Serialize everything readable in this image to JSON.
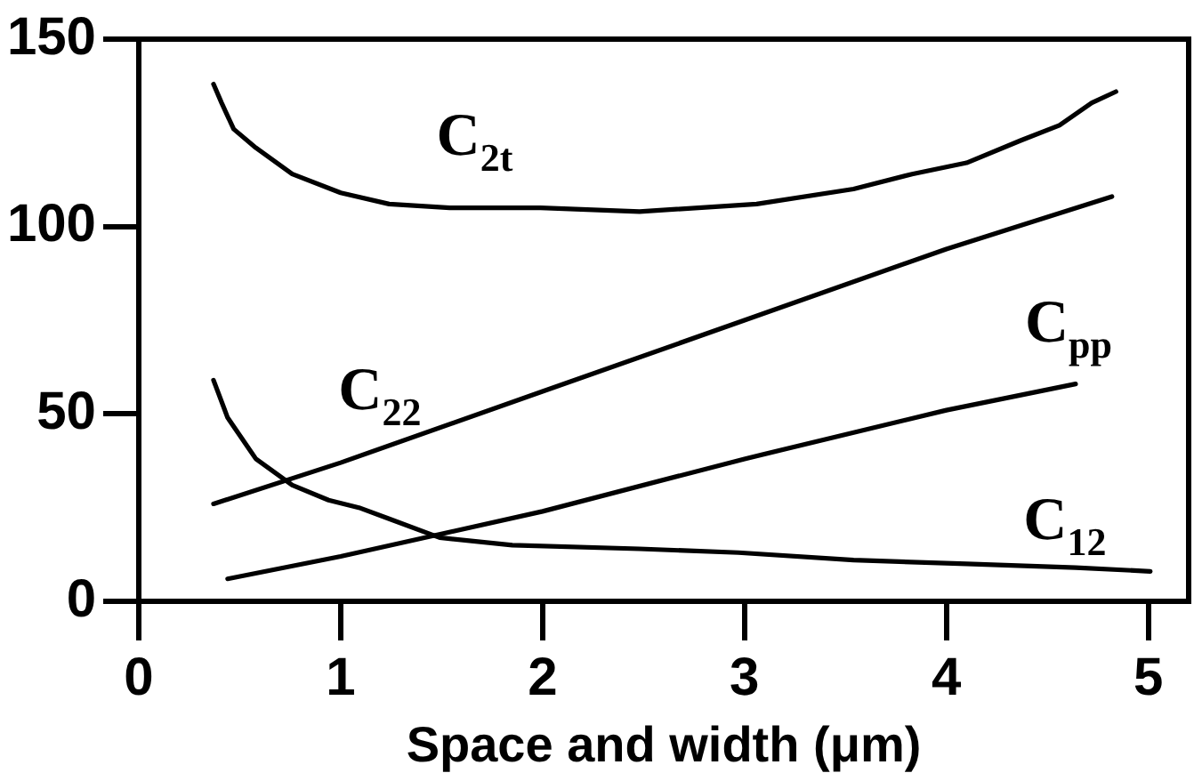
{
  "chart_data": {
    "type": "line",
    "xlabel": "Space and width (μm)",
    "xlim": [
      0,
      5.2
    ],
    "xticks": [
      0,
      1,
      2,
      3,
      4,
      5
    ],
    "ylim": [
      0,
      150
    ],
    "yticks": [
      0,
      50,
      100,
      150
    ],
    "grid": false,
    "legend": false,
    "marker": "none",
    "line_style": "solid",
    "series": [
      {
        "name": "C$_{2t}$",
        "color": "#000000",
        "x": [
          0.37,
          0.41,
          0.47,
          0.58,
          0.76,
          1.0,
          1.24,
          1.54,
          1.99,
          2.48,
          3.06,
          3.54,
          3.83,
          4.1,
          4.37,
          4.56,
          4.72,
          4.84
        ],
        "values": [
          138,
          133,
          126,
          121,
          114,
          109,
          106,
          105,
          105,
          104,
          106,
          110,
          114,
          117,
          123,
          127,
          133,
          136
        ]
      },
      {
        "name": "C$_{22}$",
        "color": "#000000",
        "x": [
          0.37,
          1,
          2,
          3,
          4,
          4.82
        ],
        "values": [
          26,
          37,
          56,
          75,
          94,
          108
        ]
      },
      {
        "name": "C$_{pp}$",
        "color": "#000000",
        "x": [
          0.44,
          1,
          2,
          3,
          4,
          4.64
        ],
        "values": [
          6,
          12,
          24,
          38,
          51,
          58
        ]
      },
      {
        "name": "C$_{12}$",
        "color": "#000000",
        "x": [
          0.37,
          0.44,
          0.58,
          0.76,
          0.94,
          1.09,
          1.24,
          1.49,
          1.85,
          2.48,
          2.97,
          3.54,
          4.1,
          4.64,
          5.01
        ],
        "values": [
          59,
          49,
          38,
          31,
          27,
          25,
          22,
          17,
          15,
          14,
          13,
          11,
          10,
          9,
          8
        ]
      }
    ]
  }
}
